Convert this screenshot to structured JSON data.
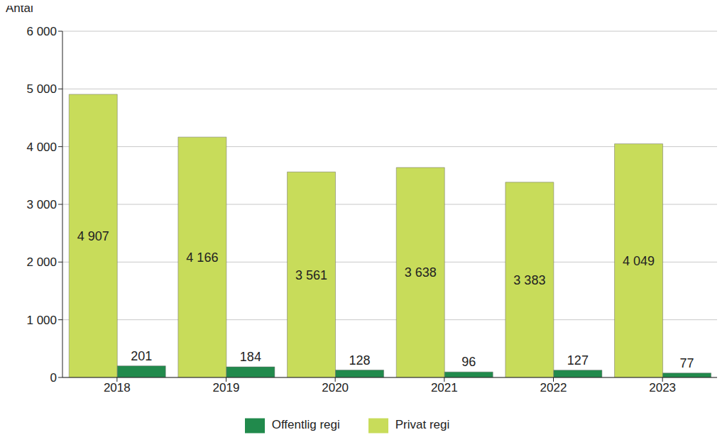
{
  "chart_data": {
    "type": "bar",
    "ylabel": "Antal",
    "categories": [
      "2018",
      "2019",
      "2020",
      "2021",
      "2022",
      "2023"
    ],
    "series": [
      {
        "name": "Privat regi",
        "color": "#c8dc5a",
        "values": [
          4907,
          4166,
          3561,
          3638,
          3383,
          4049
        ],
        "value_labels": [
          "4 907",
          "4 166",
          "3 561",
          "3 638",
          "3 383",
          "4 049"
        ]
      },
      {
        "name": "Offentlig regi",
        "color": "#218a4c",
        "values": [
          201,
          184,
          128,
          96,
          127,
          77
        ]
      }
    ],
    "ylim": [
      0,
      6000
    ],
    "yticks": [
      0,
      {
        "value": 1000,
        "label": "1 000"
      },
      {
        "value": 2000,
        "label": "2 000"
      },
      {
        "value": 3000,
        "label": "3 000"
      },
      {
        "value": 4000,
        "label": "4 000"
      },
      {
        "value": 5000,
        "label": "5 000"
      },
      {
        "value": 6000,
        "label": "6 000"
      }
    ],
    "grid": true,
    "legend": "bottom",
    "data_labels": true
  }
}
